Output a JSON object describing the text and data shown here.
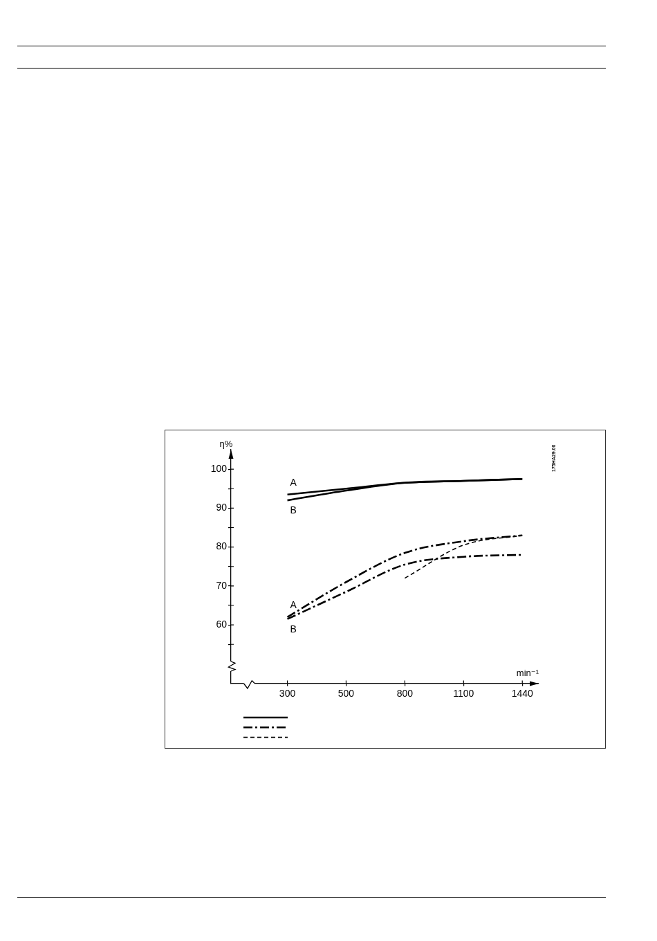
{
  "chart_data": {
    "type": "line",
    "xlabel": "min⁻¹",
    "ylabel": "η%",
    "categories": [
      "300",
      "500",
      "800",
      "1100",
      "1440"
    ],
    "series": [
      {
        "name": "A",
        "color": "#000000",
        "line_style": "solid",
        "values": [
          93.5,
          95,
          96.5,
          97,
          97.5
        ]
      },
      {
        "name": "B",
        "color": "#000000",
        "line_style": "solid",
        "values": [
          92,
          94.5,
          96.5,
          97,
          97.5
        ]
      },
      {
        "name": "A",
        "color": "#000000",
        "line_style": "dashdot",
        "values": [
          62,
          71,
          78.5,
          81.5,
          83
        ]
      },
      {
        "name": "B",
        "color": "#000000",
        "line_style": "dashdot",
        "values": [
          61.5,
          68.5,
          75.5,
          77.5,
          78
        ]
      },
      {
        "color": "#000000",
        "line_style": "dashed",
        "values": [
          null,
          null,
          72,
          80.5,
          83
        ]
      }
    ],
    "ylim": [
      45,
      105
    ],
    "yticks": [
      {
        "value": 55,
        "label": null
      },
      60,
      {
        "value": 65,
        "label": null
      },
      70,
      {
        "value": 75,
        "label": null
      },
      80,
      {
        "value": 85,
        "label": null
      },
      90,
      {
        "value": 95,
        "label": null
      },
      100
    ],
    "annotations": [
      "175HA29.00"
    ]
  }
}
